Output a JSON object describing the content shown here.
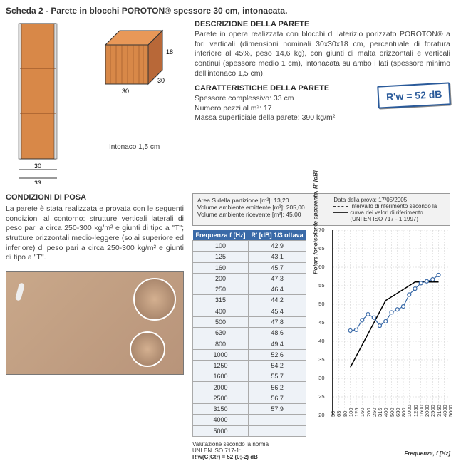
{
  "title": "Scheda 2 - Parete in blocchi POROTON® spessore 30 cm, intonacata.",
  "wall": {
    "intonaco_label": "Intonaco 1,5 cm",
    "dim_30": "30",
    "dim_33": "33",
    "dim_18": "18"
  },
  "desc": {
    "heading": "DESCRIZIONE DELLA PARETE",
    "text": "Parete in opera realizzata con blocchi di laterizio porizzato POROTON® a fori verticali (dimensioni nominali 30x30x18 cm, percentuale di foratura inferiore al 45%, peso 14,6 kg), con giunti di malta orizzontali e verticali continui (spessore medio 1 cm), intonacata su ambo i lati (spessore minimo dell'intonaco 1,5 cm)."
  },
  "char": {
    "heading": "CARATTERISTICHE DELLA PARETE",
    "l1": "Spessore complessivo: 33 cm",
    "l2": "Numero pezzi al m²: 17",
    "l3": "Massa superficiale della parete: 390 kg/m²",
    "rw": "R'w = 52 dB"
  },
  "cond": {
    "heading": "CONDIZIONI DI POSA",
    "text": "La parete è stata realizzata e provata con le seguenti condizioni al contorno: strutture verticali laterali di peso pari a circa 250-300 kg/m² e giunti di tipo a \"T\"; strutture orizzontali medio-leggere (solai superiore ed inferiore) di peso pari a circa 250-300 kg/m² e giunti di tipo a \"T\"."
  },
  "meta": {
    "area": "Area S della partizione [m²]: 13,20",
    "vol_em": "Volume ambiente emittente [m³]: 205,00",
    "vol_ri": "Volume ambiente ricevente [m³]: 45,00",
    "date": "Data della prova: 17/05/2005",
    "leg1": "Intervallo di riferimento secondo la curva dei valori di riferimento (UNI EN ISO 717 - 1:1997)",
    "leg1_short": "Intervallo di riferimento secondo la",
    "leg1_b": "curva dei valori di riferimento",
    "leg1_c": "(UNI EN ISO 717 - 1:1997)"
  },
  "table": {
    "h1": "Frequenza f [Hz]",
    "h2": "R' [dB] 1/3 ottava",
    "rows": [
      [
        "100",
        "42,9"
      ],
      [
        "125",
        "43,1"
      ],
      [
        "160",
        "45,7"
      ],
      [
        "200",
        "47,3"
      ],
      [
        "250",
        "46,4"
      ],
      [
        "315",
        "44,2"
      ],
      [
        "400",
        "45,4"
      ],
      [
        "500",
        "47,8"
      ],
      [
        "630",
        "48,6"
      ],
      [
        "800",
        "49,4"
      ],
      [
        "1000",
        "52,6"
      ],
      [
        "1250",
        "54,2"
      ],
      [
        "1600",
        "55,7"
      ],
      [
        "2000",
        "56,2"
      ],
      [
        "2500",
        "56,7"
      ],
      [
        "3150",
        "57,9"
      ],
      [
        "4000",
        ""
      ],
      [
        "5000",
        ""
      ]
    ]
  },
  "chart": {
    "type": "line",
    "ylabel": "Potere fonoisolante apparente, R' [dB]",
    "xlabel": "Frequenza, f [Hz]",
    "ylim": [
      20,
      70
    ],
    "ytick_step": 5,
    "xticks": [
      "50",
      "63",
      "80",
      "100",
      "125",
      "160",
      "200",
      "250",
      "315",
      "400",
      "500",
      "630",
      "800",
      "1000",
      "1250",
      "1600",
      "2000",
      "2500",
      "3150",
      "4000",
      "5000"
    ],
    "series_measured": {
      "color": "#3a6aa8",
      "marker": "circle",
      "marker_size": 5,
      "x": [
        100,
        125,
        160,
        200,
        250,
        315,
        400,
        500,
        630,
        800,
        1000,
        1250,
        1600,
        2000,
        2500,
        3150
      ],
      "y": [
        42.9,
        43.1,
        45.7,
        47.3,
        46.4,
        44.2,
        45.4,
        47.8,
        48.6,
        49.4,
        52.6,
        54.2,
        55.7,
        56.2,
        56.7,
        57.9
      ]
    },
    "series_ref": {
      "color": "#000000",
      "style": "solid",
      "x": [
        100,
        125,
        160,
        200,
        250,
        315,
        400,
        500,
        630,
        800,
        1000,
        1250,
        1600,
        2000,
        2500,
        3150
      ],
      "y": [
        33,
        36,
        39,
        42,
        45,
        48,
        51,
        52,
        53,
        54,
        55,
        56,
        56,
        56,
        56,
        56
      ]
    },
    "grid_color": "#cccccc",
    "background_color": "#ffffff"
  },
  "note": {
    "l1": "Valutazione secondo la norma",
    "l2": "UNI EN ISO 717-1:",
    "l3": "R'w(C;Ctr) = 52 (0;-2) dB"
  }
}
